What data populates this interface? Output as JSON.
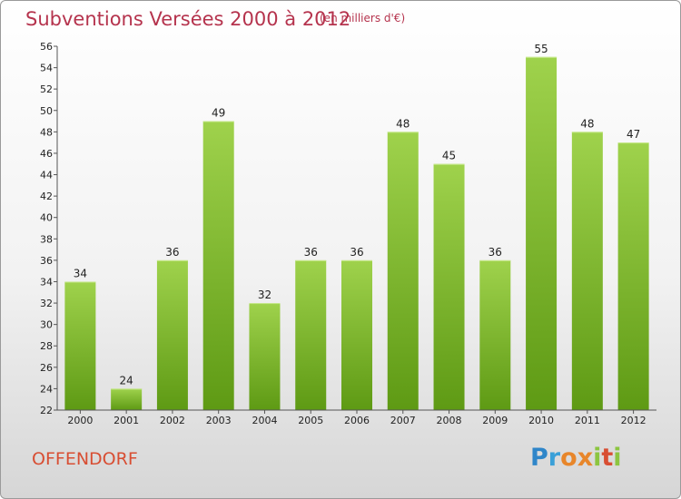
{
  "header": {
    "title": "Subventions Versées 2000 à 2012",
    "subtitle": "(en milliers d'€)"
  },
  "footer": {
    "place": "OFFENDORF",
    "logo_text": "Proxiti"
  },
  "colors": {
    "title": "#b5334d",
    "place": "#d84e33",
    "bar_top": "#9fd24c",
    "bar_bottom": "#5e9a14"
  },
  "chart_data": {
    "type": "bar",
    "categories": [
      "2000",
      "2001",
      "2002",
      "2003",
      "2004",
      "2005",
      "2006",
      "2007",
      "2008",
      "2009",
      "2010",
      "2011",
      "2012"
    ],
    "values": [
      34,
      24,
      36,
      49,
      32,
      36,
      36,
      48,
      45,
      36,
      55,
      48,
      47
    ],
    "title": "Subventions Versées 2000 à 2012",
    "subtitle": "(en milliers d'€)",
    "xlabel": "",
    "ylabel": "",
    "ylim": [
      22,
      56
    ],
    "yticks": [
      22,
      24,
      26,
      28,
      30,
      32,
      34,
      36,
      38,
      40,
      42,
      44,
      46,
      48,
      50,
      52,
      54,
      56
    ],
    "grid": false,
    "legend": "none"
  }
}
